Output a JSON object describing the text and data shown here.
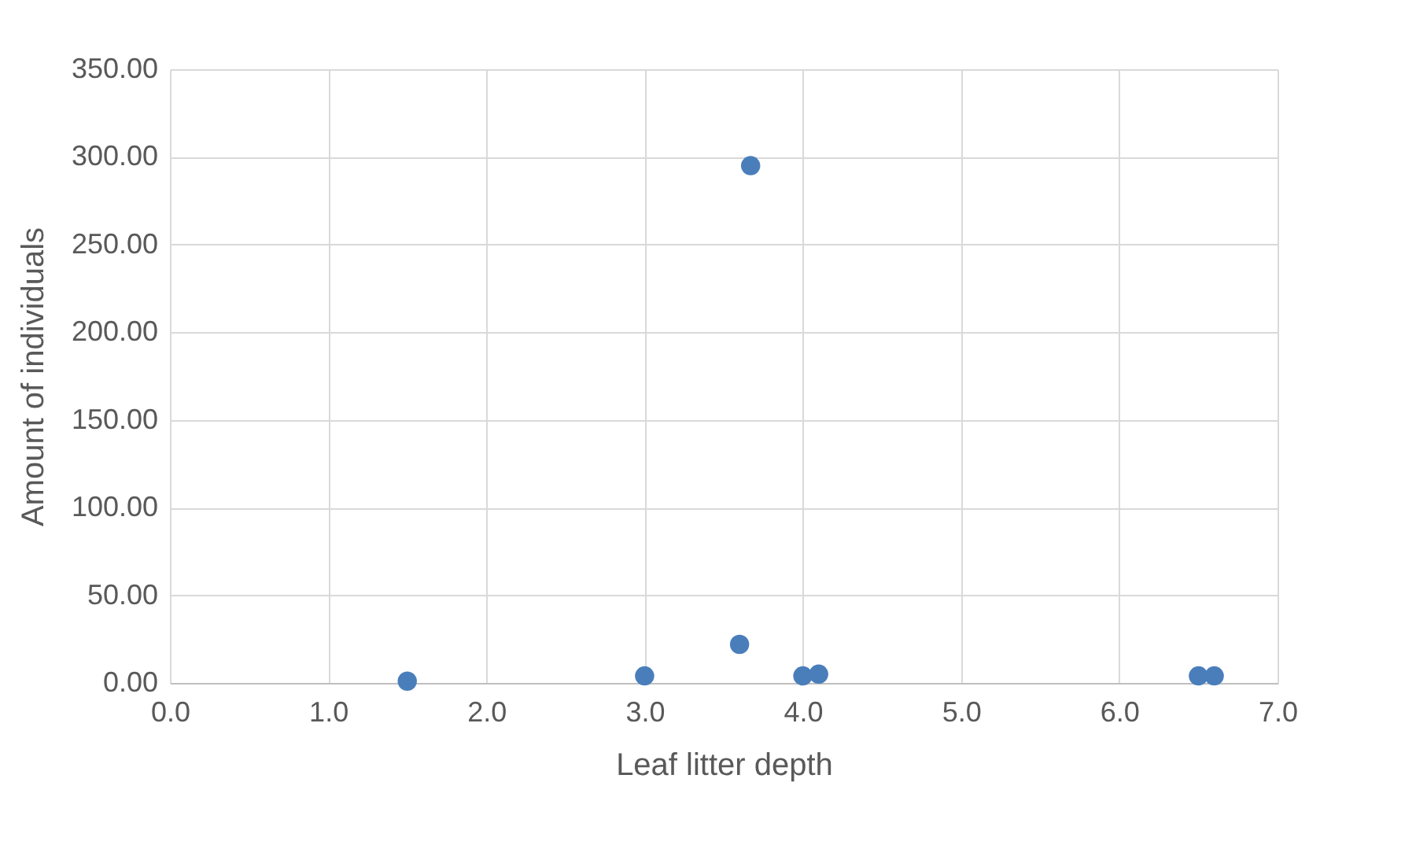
{
  "chart_data": {
    "type": "scatter",
    "xlabel": "Leaf litter depth",
    "ylabel": "Amount of individuals",
    "x": [
      1.5,
      3.0,
      3.6,
      3.67,
      4.0,
      4.1,
      6.5,
      6.6
    ],
    "series": [
      {
        "color": "#4a7ebb",
        "values": [
          1,
          4,
          22,
          295,
          4,
          5,
          4,
          4
        ]
      }
    ],
    "xlim": [
      0,
      7
    ],
    "xticks": [
      {
        "value": 0,
        "label": "0.0"
      },
      {
        "value": 1,
        "label": "1.0"
      },
      {
        "value": 2,
        "label": "2.0"
      },
      {
        "value": 3,
        "label": "3.0"
      },
      {
        "value": 4,
        "label": "4.0"
      },
      {
        "value": 5,
        "label": "5.0"
      },
      {
        "value": 6,
        "label": "6.0"
      },
      {
        "value": 7,
        "label": "7.0"
      }
    ],
    "ylim": [
      0,
      350
    ],
    "yticks": [
      {
        "value": 0,
        "label": "0.00"
      },
      {
        "value": 50,
        "label": "50.00"
      },
      {
        "value": 100,
        "label": "100.00"
      },
      {
        "value": 150,
        "label": "150.00"
      },
      {
        "value": 200,
        "label": "200.00"
      },
      {
        "value": 250,
        "label": "250.00"
      },
      {
        "value": 300,
        "label": "300.00"
      },
      {
        "value": 350,
        "label": "350.00"
      }
    ],
    "grid": true,
    "marker": "circle"
  }
}
